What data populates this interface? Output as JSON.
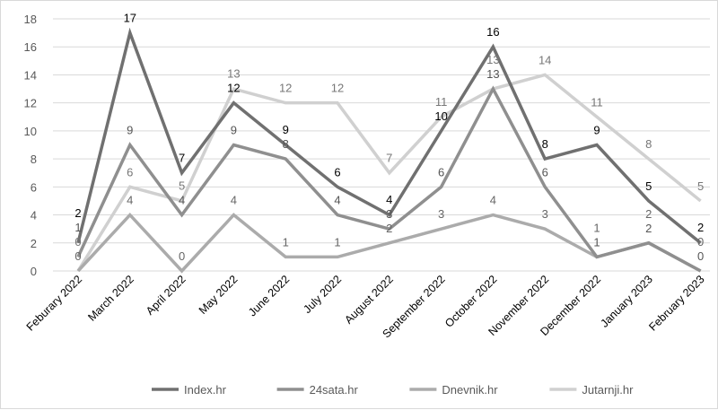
{
  "chart_data": {
    "type": "line",
    "title": "",
    "xlabel": "",
    "ylabel": "",
    "ylim": [
      0,
      18
    ],
    "yticks": [
      "0",
      "2",
      "4",
      "6",
      "8",
      "10",
      "12",
      "14",
      "16",
      "18"
    ],
    "grid": true,
    "legend_placement": "bottom",
    "categories": [
      "Feburary 2022",
      "March 2022",
      "April 2022",
      "May 2022",
      "June 2022",
      "July 2022",
      "August 2022",
      "September 2022",
      "October 2022",
      "November 2022",
      "December 2022",
      "January 2023",
      "February 2023"
    ],
    "series": [
      {
        "name": "Index.hr",
        "color": "#707070",
        "label_color": "#000000",
        "values": [
          2,
          17,
          7,
          12,
          9,
          6,
          4,
          10,
          16,
          8,
          9,
          5,
          2
        ]
      },
      {
        "name": "24sata.hr",
        "color": "#8f8f8f",
        "label_color": "#555555",
        "values": [
          1,
          9,
          4,
          9,
          8,
          4,
          3,
          6,
          13,
          6,
          1,
          2,
          0
        ]
      },
      {
        "name": "Dnevnik.hr",
        "color": "#ababab",
        "label_color": "#666666",
        "values": [
          0,
          4,
          0,
          4,
          1,
          1,
          2,
          3,
          4,
          3,
          1,
          2,
          0
        ]
      },
      {
        "name": "Jutarnji.hr",
        "color": "#d0d0d0",
        "label_color": "#777777",
        "values": [
          0,
          6,
          5,
          13,
          12,
          12,
          7,
          11,
          13,
          14,
          11,
          8,
          5
        ]
      }
    ]
  }
}
